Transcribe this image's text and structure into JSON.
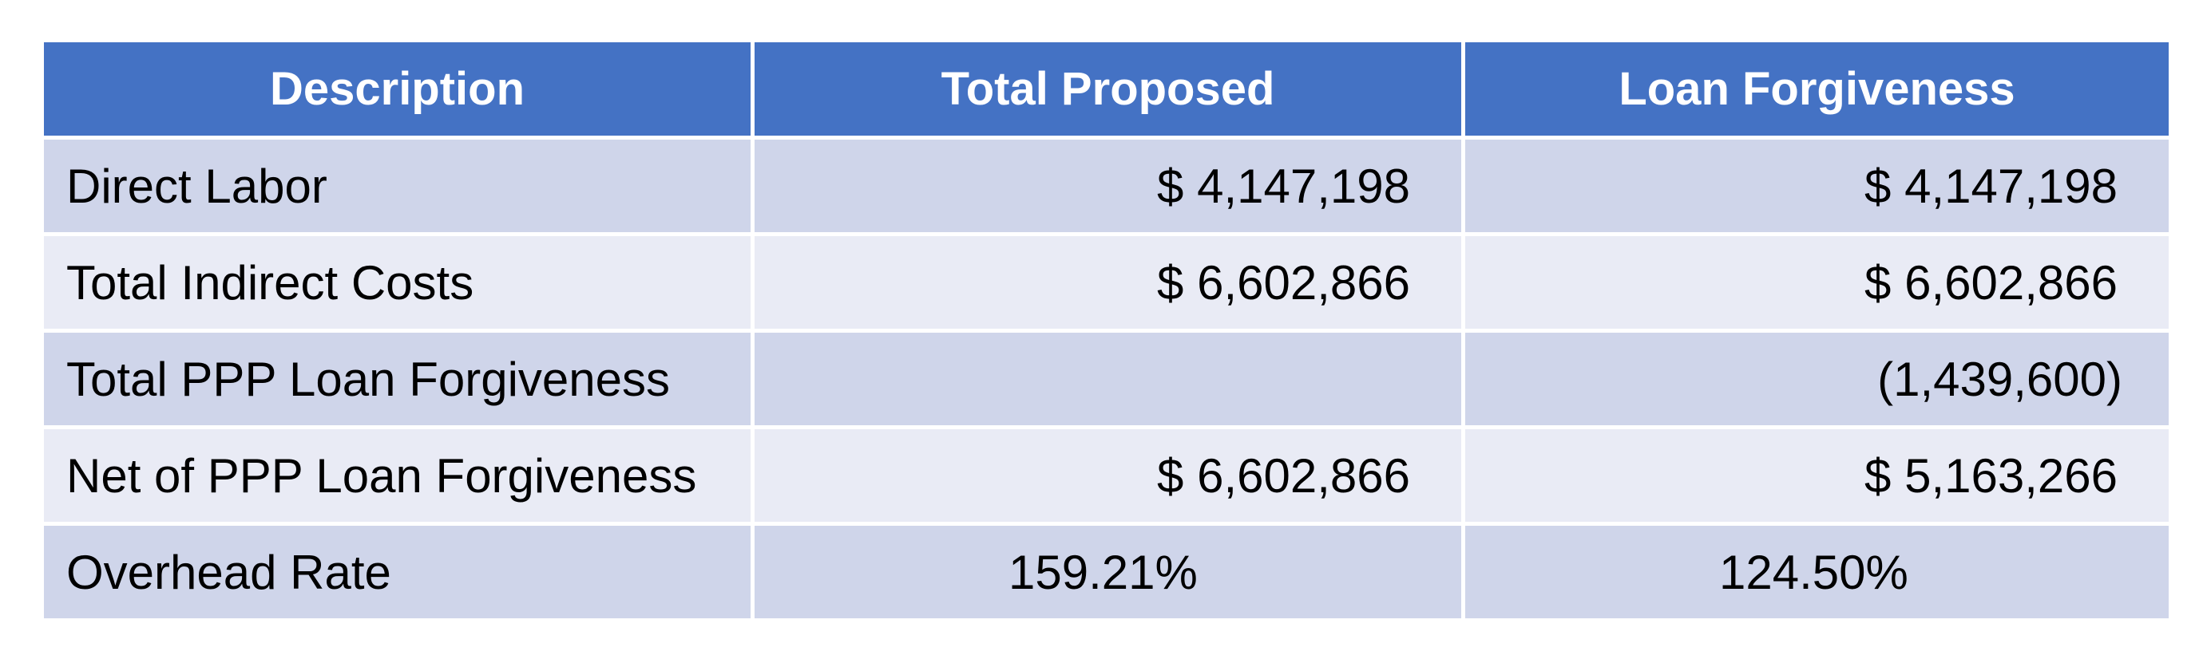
{
  "table": {
    "headers": [
      "Description",
      "Total Proposed",
      "Loan Forgiveness"
    ],
    "rows": [
      {
        "description": "Direct Labor",
        "total_proposed": "$ 4,147,198",
        "loan_forgiveness": "$ 4,147,198"
      },
      {
        "description": "Total Indirect Costs",
        "total_proposed": "$ 6,602,866",
        "loan_forgiveness": "$ 6,602,866"
      },
      {
        "description": "Total PPP Loan Forgiveness",
        "total_proposed": "",
        "loan_forgiveness": "(1,439,600)"
      },
      {
        "description": "Net of PPP Loan Forgiveness",
        "total_proposed": "$ 6,602,866",
        "loan_forgiveness": "$ 5,163,266"
      },
      {
        "description": "Overhead Rate",
        "total_proposed": "159.21%",
        "loan_forgiveness": "124.50%"
      }
    ]
  },
  "colors": {
    "header_bg": "#4472c4",
    "row_dark": "#cfd5ea",
    "row_light": "#e9ebf5"
  }
}
